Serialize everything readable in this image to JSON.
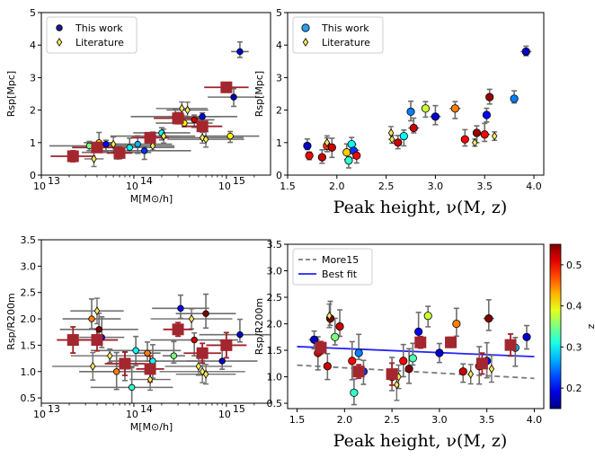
{
  "chart_data": [
    {
      "id": "tl",
      "type": "scatter",
      "xscale": "log",
      "xlim": [
        10000000000000.0,
        3000000000000000.0
      ],
      "ylim": [
        0,
        5
      ],
      "xlabel": "M[M⊙/h]",
      "ylabel": "Rsp[Mpc]",
      "xticks": [
        {
          "v": 10000000000000.0,
          "label": "10"
        },
        {
          "v": 100000000000000.0,
          "label": "10"
        },
        {
          "v": 1000000000000000.0,
          "label": "10"
        }
      ],
      "xtick_exponents": [
        "13",
        "14",
        "15"
      ],
      "yticks": [
        0,
        1,
        2,
        3,
        4,
        5
      ],
      "legend": [
        "This work",
        "Literature"
      ],
      "legend_position": "upper-left",
      "this_work": [
        {
          "x": 33000000000000.0,
          "y": 0.9,
          "z": 0.35
        },
        {
          "x": 42000000000000.0,
          "y": 1.0,
          "z": 0.42
        },
        {
          "x": 50000000000000.0,
          "y": 0.95,
          "z": 0.2
        },
        {
          "x": 65000000000000.0,
          "y": 0.7,
          "z": 0.5
        },
        {
          "x": 90000000000000.0,
          "y": 0.85,
          "z": 0.3
        },
        {
          "x": 110000000000000.0,
          "y": 0.95,
          "z": 0.27
        },
        {
          "x": 130000000000000.0,
          "y": 0.75,
          "z": 0.22
        },
        {
          "x": 160000000000000.0,
          "y": 1.2,
          "z": 0.45
        },
        {
          "x": 200000000000000.0,
          "y": 1.3,
          "z": 0.3
        },
        {
          "x": 280000000000000.0,
          "y": 1.8,
          "z": 0.38
        },
        {
          "x": 350000000000000.0,
          "y": 1.6,
          "z": 0.4
        },
        {
          "x": 450000000000000.0,
          "y": 1.7,
          "z": 0.52
        },
        {
          "x": 550000000000000.0,
          "y": 1.8,
          "z": 0.2
        },
        {
          "x": 1100000000000000.0,
          "y": 1.2,
          "z": 0.4
        },
        {
          "x": 1200000000000000.0,
          "y": 2.4,
          "z": 0.17
        },
        {
          "x": 1400000000000000.0,
          "y": 3.8,
          "z": 0.18
        }
      ],
      "literature": [
        {
          "x": 37000000000000.0,
          "y": 0.5
        },
        {
          "x": 60000000000000.0,
          "y": 0.95
        },
        {
          "x": 160000000000000.0,
          "y": 0.9
        },
        {
          "x": 210000000000000.0,
          "y": 1.2
        },
        {
          "x": 330000000000000.0,
          "y": 2.05
        },
        {
          "x": 380000000000000.0,
          "y": 2.0
        },
        {
          "x": 550000000000000.0,
          "y": 1.15
        },
        {
          "x": 600000000000000.0,
          "y": 1.1
        }
      ],
      "binned": [
        {
          "x": 22000000000000.0,
          "y": 0.58
        },
        {
          "x": 40000000000000.0,
          "y": 0.85
        },
        {
          "x": 70000000000000.0,
          "y": 0.68
        },
        {
          "x": 150000000000000.0,
          "y": 1.15
        },
        {
          "x": 300000000000000.0,
          "y": 1.75
        },
        {
          "x": 550000000000000.0,
          "y": 1.5
        },
        {
          "x": 1000000000000000.0,
          "y": 2.7
        }
      ]
    },
    {
      "id": "tr",
      "type": "scatter",
      "xlim": [
        1.5,
        4.1
      ],
      "ylim": [
        0,
        5
      ],
      "xlabel": "Peak height, ν(M, z)",
      "ylabel": "Rsp[Mpc]",
      "xticks": [
        1.5,
        2.0,
        2.5,
        3.0,
        3.5,
        4.0
      ],
      "yticks": [
        0,
        1,
        2,
        3,
        4,
        5
      ],
      "legend": [
        "This work",
        "Literature"
      ],
      "legend_position": "upper-left",
      "this_work": [
        {
          "x": 1.7,
          "y": 0.9,
          "z": 0.18
        },
        {
          "x": 1.72,
          "y": 0.6,
          "z": 0.5
        },
        {
          "x": 1.85,
          "y": 0.55,
          "z": 0.52
        },
        {
          "x": 1.9,
          "y": 0.9,
          "z": 0.48
        },
        {
          "x": 1.95,
          "y": 0.85,
          "z": 0.52
        },
        {
          "x": 2.1,
          "y": 0.7,
          "z": 0.42
        },
        {
          "x": 2.12,
          "y": 0.45,
          "z": 0.32
        },
        {
          "x": 2.15,
          "y": 0.95,
          "z": 0.3
        },
        {
          "x": 2.17,
          "y": 0.75,
          "z": 0.22
        },
        {
          "x": 2.2,
          "y": 0.6,
          "z": 0.5
        },
        {
          "x": 2.62,
          "y": 1.0,
          "z": 0.52
        },
        {
          "x": 2.68,
          "y": 1.2,
          "z": 0.3
        },
        {
          "x": 2.75,
          "y": 1.95,
          "z": 0.25
        },
        {
          "x": 2.78,
          "y": 1.45,
          "z": 0.52
        },
        {
          "x": 2.9,
          "y": 2.05,
          "z": 0.38
        },
        {
          "x": 3.0,
          "y": 1.8,
          "z": 0.18
        },
        {
          "x": 3.2,
          "y": 2.05,
          "z": 0.45
        },
        {
          "x": 3.3,
          "y": 1.1,
          "z": 0.5
        },
        {
          "x": 3.42,
          "y": 1.3,
          "z": 0.54
        },
        {
          "x": 3.5,
          "y": 1.25,
          "z": 0.5
        },
        {
          "x": 3.52,
          "y": 1.85,
          "z": 0.2
        },
        {
          "x": 3.55,
          "y": 2.4,
          "z": 0.54
        },
        {
          "x": 3.8,
          "y": 2.35,
          "z": 0.25
        },
        {
          "x": 3.92,
          "y": 3.8,
          "z": 0.18
        }
      ],
      "literature": [
        {
          "x": 1.9,
          "y": 1.0
        },
        {
          "x": 2.55,
          "y": 1.3
        },
        {
          "x": 2.56,
          "y": 1.1
        },
        {
          "x": 3.4,
          "y": 1.0
        },
        {
          "x": 3.6,
          "y": 1.2
        }
      ]
    },
    {
      "id": "bl",
      "type": "scatter",
      "xscale": "log",
      "xlim": [
        10000000000000.0,
        3000000000000000.0
      ],
      "ylim": [
        0.4,
        3.5
      ],
      "xlabel": "M[M⊙/h]",
      "ylabel": "Rsp/R200m",
      "xticks": [
        {
          "v": 10000000000000.0,
          "label": "10"
        },
        {
          "v": 100000000000000.0,
          "label": "10"
        },
        {
          "v": 1000000000000000.0,
          "label": "10"
        }
      ],
      "xtick_exponents": [
        "13",
        "14",
        "15"
      ],
      "yticks": [
        0.5,
        1.0,
        1.5,
        2.0,
        2.5,
        3.0,
        3.5
      ],
      "this_work": [
        {
          "x": 35000000000000.0,
          "y": 2.0,
          "z": 0.45
        },
        {
          "x": 42000000000000.0,
          "y": 1.8,
          "z": 0.55
        },
        {
          "x": 45000000000000.0,
          "y": 1.65,
          "z": 0.2
        },
        {
          "x": 65000000000000.0,
          "y": 1.0,
          "z": 0.45
        },
        {
          "x": 80000000000000.0,
          "y": 1.1,
          "z": 0.5
        },
        {
          "x": 95000000000000.0,
          "y": 0.7,
          "z": 0.32
        },
        {
          "x": 105000000000000.0,
          "y": 1.4,
          "z": 0.3
        },
        {
          "x": 140000000000000.0,
          "y": 1.35,
          "z": 0.45
        },
        {
          "x": 160000000000000.0,
          "y": 1.2,
          "z": 0.3
        },
        {
          "x": 270000000000000.0,
          "y": 1.3,
          "z": 0.35
        },
        {
          "x": 320000000000000.0,
          "y": 2.2,
          "z": 0.2
        },
        {
          "x": 450000000000000.0,
          "y": 1.6,
          "z": 0.52
        },
        {
          "x": 600000000000000.0,
          "y": 2.1,
          "z": 0.55
        },
        {
          "x": 900000000000000.0,
          "y": 1.2,
          "z": 0.18
        },
        {
          "x": 1400000000000000.0,
          "y": 1.7,
          "z": 0.18
        }
      ],
      "literature": [
        {
          "x": 36000000000000.0,
          "y": 1.1
        },
        {
          "x": 40000000000000.0,
          "y": 2.15
        },
        {
          "x": 55000000000000.0,
          "y": 1.3
        },
        {
          "x": 150000000000000.0,
          "y": 0.85
        },
        {
          "x": 420000000000000.0,
          "y": 2.0
        },
        {
          "x": 500000000000000.0,
          "y": 1.1
        },
        {
          "x": 550000000000000.0,
          "y": 1.0
        },
        {
          "x": 600000000000000.0,
          "y": 0.95
        }
      ],
      "binned": [
        {
          "x": 22000000000000.0,
          "y": 1.6
        },
        {
          "x": 40000000000000.0,
          "y": 1.6
        },
        {
          "x": 80000000000000.0,
          "y": 1.15
        },
        {
          "x": 150000000000000.0,
          "y": 1.05
        },
        {
          "x": 300000000000000.0,
          "y": 1.8
        },
        {
          "x": 550000000000000.0,
          "y": 1.35
        },
        {
          "x": 1000000000000000.0,
          "y": 1.5
        }
      ]
    },
    {
      "id": "br",
      "type": "scatter",
      "xlim": [
        1.4,
        4.1
      ],
      "ylim": [
        0.4,
        3.5
      ],
      "xlabel": "Peak height, ν(M, z)",
      "ylabel": "Rsp/R200m",
      "xticks": [
        1.5,
        2.0,
        2.5,
        3.0,
        3.5,
        4.0
      ],
      "yticks": [
        0.5,
        1.0,
        1.5,
        2.0,
        2.5,
        3.0,
        3.5
      ],
      "legend": [
        "More15",
        "Best fit"
      ],
      "legend_position": "upper-left",
      "lines": [
        {
          "name": "More15",
          "style": "dashed",
          "color": "#7a7a7a",
          "x": [
            1.5,
            4.0
          ],
          "y": [
            1.22,
            0.97
          ]
        },
        {
          "name": "Best fit",
          "style": "solid",
          "color": "#2323ff",
          "x": [
            1.5,
            4.0
          ],
          "y": [
            1.57,
            1.38
          ]
        }
      ],
      "this_work": [
        {
          "x": 1.68,
          "y": 1.7,
          "z": 0.18
        },
        {
          "x": 1.72,
          "y": 1.45,
          "z": 0.52
        },
        {
          "x": 1.82,
          "y": 1.2,
          "z": 0.52
        },
        {
          "x": 1.85,
          "y": 2.1,
          "z": 0.55
        },
        {
          "x": 1.9,
          "y": 1.75,
          "z": 0.35
        },
        {
          "x": 1.95,
          "y": 1.95,
          "z": 0.52
        },
        {
          "x": 2.08,
          "y": 1.3,
          "z": 0.5
        },
        {
          "x": 2.1,
          "y": 0.7,
          "z": 0.32
        },
        {
          "x": 2.15,
          "y": 1.45,
          "z": 0.25
        },
        {
          "x": 2.2,
          "y": 1.1,
          "z": 0.22
        },
        {
          "x": 2.5,
          "y": 1.0,
          "z": 0.5
        },
        {
          "x": 2.62,
          "y": 1.3,
          "z": 0.5
        },
        {
          "x": 2.68,
          "y": 1.15,
          "z": 0.55
        },
        {
          "x": 2.72,
          "y": 1.35,
          "z": 0.33
        },
        {
          "x": 2.78,
          "y": 1.85,
          "z": 0.2
        },
        {
          "x": 2.88,
          "y": 2.15,
          "z": 0.38
        },
        {
          "x": 3.0,
          "y": 1.45,
          "z": 0.18
        },
        {
          "x": 3.18,
          "y": 2.0,
          "z": 0.45
        },
        {
          "x": 3.25,
          "y": 1.1,
          "z": 0.52
        },
        {
          "x": 3.42,
          "y": 1.2,
          "z": 0.5
        },
        {
          "x": 3.5,
          "y": 1.3,
          "z": 0.2
        },
        {
          "x": 3.52,
          "y": 2.1,
          "z": 0.55
        },
        {
          "x": 3.8,
          "y": 1.55,
          "z": 0.27
        },
        {
          "x": 3.92,
          "y": 1.75,
          "z": 0.18
        }
      ],
      "literature": [
        {
          "x": 1.84,
          "y": 2.15
        },
        {
          "x": 2.55,
          "y": 0.85
        },
        {
          "x": 2.57,
          "y": 1.0
        },
        {
          "x": 3.33,
          "y": 1.05
        },
        {
          "x": 3.55,
          "y": 1.15
        }
      ],
      "binned": [
        {
          "x": 1.75,
          "y": 1.55
        },
        {
          "x": 2.15,
          "y": 1.1
        },
        {
          "x": 2.5,
          "y": 1.05
        },
        {
          "x": 2.8,
          "y": 1.65
        },
        {
          "x": 3.12,
          "y": 1.65
        },
        {
          "x": 3.45,
          "y": 1.25
        },
        {
          "x": 3.75,
          "y": 1.6
        }
      ],
      "colorbar": {
        "label": "z",
        "range": [
          0.15,
          0.55
        ],
        "ticks": [
          0.2,
          0.3,
          0.4,
          0.5
        ],
        "colormap": "jet"
      }
    }
  ]
}
